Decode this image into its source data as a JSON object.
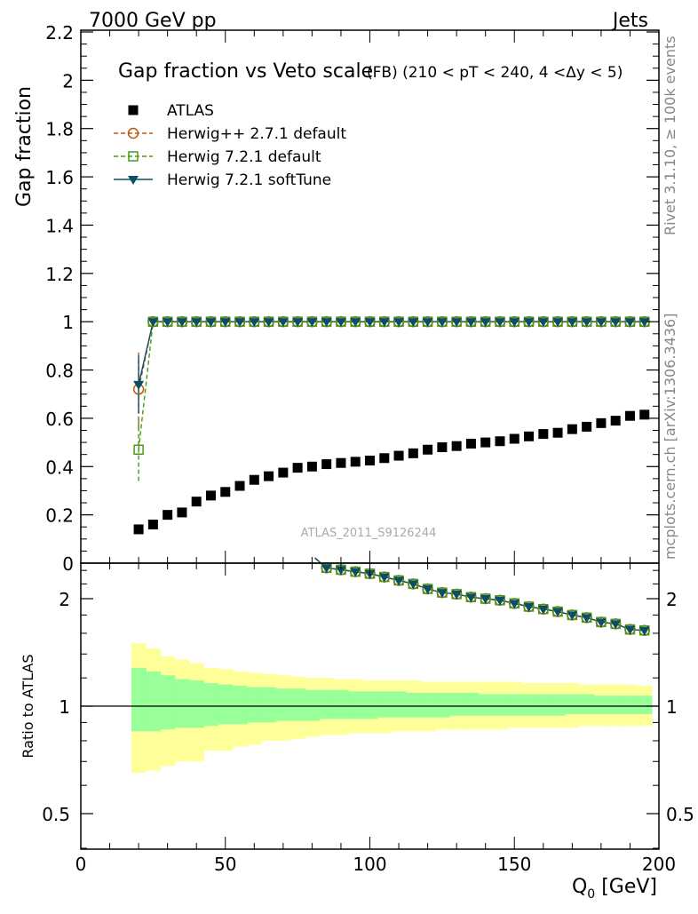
{
  "header": {
    "left": "7000 GeV pp",
    "right": "Jets",
    "side_top": "Rivet 3.1.10, ≥ 100k events",
    "side_bottom": "mcplots.cern.ch [arXiv:1306.3436]"
  },
  "chart_data": [
    {
      "type": "scatter",
      "title": "Gap fraction vs Veto scale",
      "subtitle": "(FB) (210 < pT < 240, 4 <Δy < 5)",
      "xlabel": "Q",
      "xlabel_sub": "0",
      "xlabel_unit": " [GeV]",
      "ylabel": "Gap fraction",
      "watermark": "ATLAS_2011_S9126244",
      "xlim": [
        0,
        200
      ],
      "ylim": [
        0,
        2.2
      ],
      "yticks": [
        0.2,
        0.4,
        0.6,
        0.8,
        1,
        1.2,
        1.4,
        1.6,
        1.8,
        2,
        2.2
      ],
      "ytick_labels": [
        "0.2",
        "0.4",
        "0.6",
        "0.8",
        "1",
        "1.2",
        "1.4",
        "1.6",
        "1.8",
        "2",
        "2.2"
      ],
      "ytick_zero_label": "0",
      "legend": [
        {
          "name": "ATLAS",
          "color": "#000000",
          "marker": "square-filled",
          "dash": "none"
        },
        {
          "name": "Herwig++ 2.7.1 default",
          "color": "#b85a10",
          "marker": "circle-open",
          "dash": "dashed"
        },
        {
          "name": "Herwig 7.2.1 default",
          "color": "#4a9a18",
          "marker": "square-open",
          "dash": "dashed"
        },
        {
          "name": "Herwig 7.2.1 softTune",
          "color": "#0e4e64",
          "marker": "triangle-down-filled",
          "dash": "solid"
        }
      ],
      "x": [
        20,
        25,
        30,
        35,
        40,
        45,
        50,
        55,
        60,
        65,
        70,
        75,
        80,
        85,
        90,
        95,
        100,
        105,
        110,
        115,
        120,
        125,
        130,
        135,
        140,
        145,
        150,
        155,
        160,
        165,
        170,
        175,
        180,
        185,
        190,
        195
      ],
      "series": [
        {
          "name": "ATLAS",
          "values": [
            0.14,
            0.16,
            0.2,
            0.21,
            0.255,
            0.28,
            0.295,
            0.32,
            0.345,
            0.36,
            0.375,
            0.395,
            0.4,
            0.41,
            0.415,
            0.42,
            0.425,
            0.435,
            0.445,
            0.455,
            0.47,
            0.48,
            0.485,
            0.495,
            0.5,
            0.505,
            0.515,
            0.525,
            0.535,
            0.54,
            0.555,
            0.565,
            0.58,
            0.59,
            0.61,
            0.615
          ]
        },
        {
          "name": "Herwig++ 2.7.1 default",
          "values": [
            0.72,
            1,
            1,
            1,
            1,
            1,
            1,
            1,
            1,
            1,
            1,
            1,
            1,
            1,
            1,
            1,
            1,
            1,
            1,
            1,
            1,
            1,
            1,
            1,
            1,
            1,
            1,
            1,
            1,
            1,
            1,
            1,
            1,
            1,
            1,
            1
          ],
          "err_first": 0.16
        },
        {
          "name": "Herwig 7.2.1 default",
          "values": [
            0.47,
            1,
            1,
            1,
            1,
            1,
            1,
            1,
            1,
            1,
            1,
            1,
            1,
            1,
            1,
            1,
            1,
            1,
            1,
            1,
            1,
            1,
            1,
            1,
            1,
            1,
            1,
            1,
            1,
            1,
            1,
            1,
            1,
            1,
            1,
            1
          ],
          "err_first": 0.13
        },
        {
          "name": "Herwig 7.2.1 softTune",
          "values": [
            0.74,
            1,
            1,
            1,
            1,
            1,
            1,
            1,
            1,
            1,
            1,
            1,
            1,
            1,
            1,
            1,
            1,
            1,
            1,
            1,
            1,
            1,
            1,
            1,
            1,
            1,
            1,
            1,
            1,
            1,
            1,
            1,
            1,
            1,
            1,
            1
          ],
          "err_first": 0.12
        }
      ]
    },
    {
      "type": "scatter",
      "ylabel": "Ratio to ATLAS",
      "scale": "log",
      "ylim": [
        0.38,
        2.6
      ],
      "yticks": [
        0.5,
        1,
        2
      ],
      "ytick_labels": [
        "0.5",
        "1",
        "2"
      ],
      "xticks": [
        0,
        50,
        100,
        150,
        200
      ],
      "xtick_labels": [
        "0",
        "50",
        "100",
        "150",
        "200"
      ],
      "ratio_x": [
        85,
        90,
        95,
        100,
        105,
        110,
        115,
        120,
        125,
        130,
        135,
        140,
        145,
        150,
        155,
        160,
        165,
        170,
        175,
        180,
        185,
        190,
        195
      ],
      "ratio_values": [
        2.44,
        2.41,
        2.38,
        2.35,
        2.3,
        2.25,
        2.2,
        2.13,
        2.08,
        2.06,
        2.02,
        2.0,
        1.98,
        1.94,
        1.9,
        1.87,
        1.84,
        1.8,
        1.77,
        1.72,
        1.7,
        1.64,
        1.63
      ],
      "band_x": [
        17.5,
        22.5,
        27.5,
        32.5,
        37.5,
        42.5,
        47.5,
        52.5,
        57.5,
        62.5,
        67.5,
        72.5,
        77.5,
        82.5,
        87.5,
        92.5,
        97.5,
        102.5,
        107.5,
        112.5,
        117.5,
        122.5,
        127.5,
        132.5,
        137.5,
        142.5,
        147.5,
        152.5,
        157.5,
        162.5,
        167.5,
        172.5,
        177.5,
        182.5,
        187.5,
        192.5,
        197.5
      ],
      "band_yellow": [
        [
          0.65,
          1.5
        ],
        [
          0.66,
          1.45
        ],
        [
          0.68,
          1.38
        ],
        [
          0.7,
          1.35
        ],
        [
          0.7,
          1.32
        ],
        [
          0.75,
          1.28
        ],
        [
          0.75,
          1.27
        ],
        [
          0.77,
          1.25
        ],
        [
          0.78,
          1.24
        ],
        [
          0.8,
          1.23
        ],
        [
          0.8,
          1.22
        ],
        [
          0.81,
          1.21
        ],
        [
          0.82,
          1.2
        ],
        [
          0.83,
          1.2
        ],
        [
          0.83,
          1.19
        ],
        [
          0.84,
          1.19
        ],
        [
          0.84,
          1.18
        ],
        [
          0.84,
          1.18
        ],
        [
          0.85,
          1.18
        ],
        [
          0.85,
          1.18
        ],
        [
          0.85,
          1.17
        ],
        [
          0.86,
          1.17
        ],
        [
          0.86,
          1.17
        ],
        [
          0.86,
          1.17
        ],
        [
          0.86,
          1.17
        ],
        [
          0.86,
          1.17
        ],
        [
          0.87,
          1.17
        ],
        [
          0.87,
          1.16
        ],
        [
          0.87,
          1.16
        ],
        [
          0.87,
          1.16
        ],
        [
          0.87,
          1.16
        ],
        [
          0.88,
          1.15
        ],
        [
          0.88,
          1.15
        ],
        [
          0.88,
          1.15
        ],
        [
          0.88,
          1.15
        ],
        [
          0.88,
          1.14
        ]
      ],
      "band_green": [
        [
          0.85,
          1.28
        ],
        [
          0.85,
          1.25
        ],
        [
          0.86,
          1.22
        ],
        [
          0.87,
          1.19
        ],
        [
          0.87,
          1.18
        ],
        [
          0.88,
          1.16
        ],
        [
          0.89,
          1.15
        ],
        [
          0.89,
          1.14
        ],
        [
          0.9,
          1.13
        ],
        [
          0.9,
          1.13
        ],
        [
          0.91,
          1.12
        ],
        [
          0.91,
          1.12
        ],
        [
          0.91,
          1.11
        ],
        [
          0.92,
          1.11
        ],
        [
          0.92,
          1.11
        ],
        [
          0.92,
          1.1
        ],
        [
          0.92,
          1.1
        ],
        [
          0.93,
          1.1
        ],
        [
          0.93,
          1.1
        ],
        [
          0.93,
          1.09
        ],
        [
          0.93,
          1.09
        ],
        [
          0.93,
          1.09
        ],
        [
          0.94,
          1.09
        ],
        [
          0.94,
          1.09
        ],
        [
          0.94,
          1.08
        ],
        [
          0.94,
          1.08
        ],
        [
          0.94,
          1.08
        ],
        [
          0.94,
          1.08
        ],
        [
          0.94,
          1.08
        ],
        [
          0.94,
          1.08
        ],
        [
          0.95,
          1.08
        ],
        [
          0.95,
          1.08
        ],
        [
          0.95,
          1.07
        ],
        [
          0.95,
          1.07
        ],
        [
          0.95,
          1.07
        ],
        [
          0.95,
          1.07
        ]
      ]
    }
  ]
}
